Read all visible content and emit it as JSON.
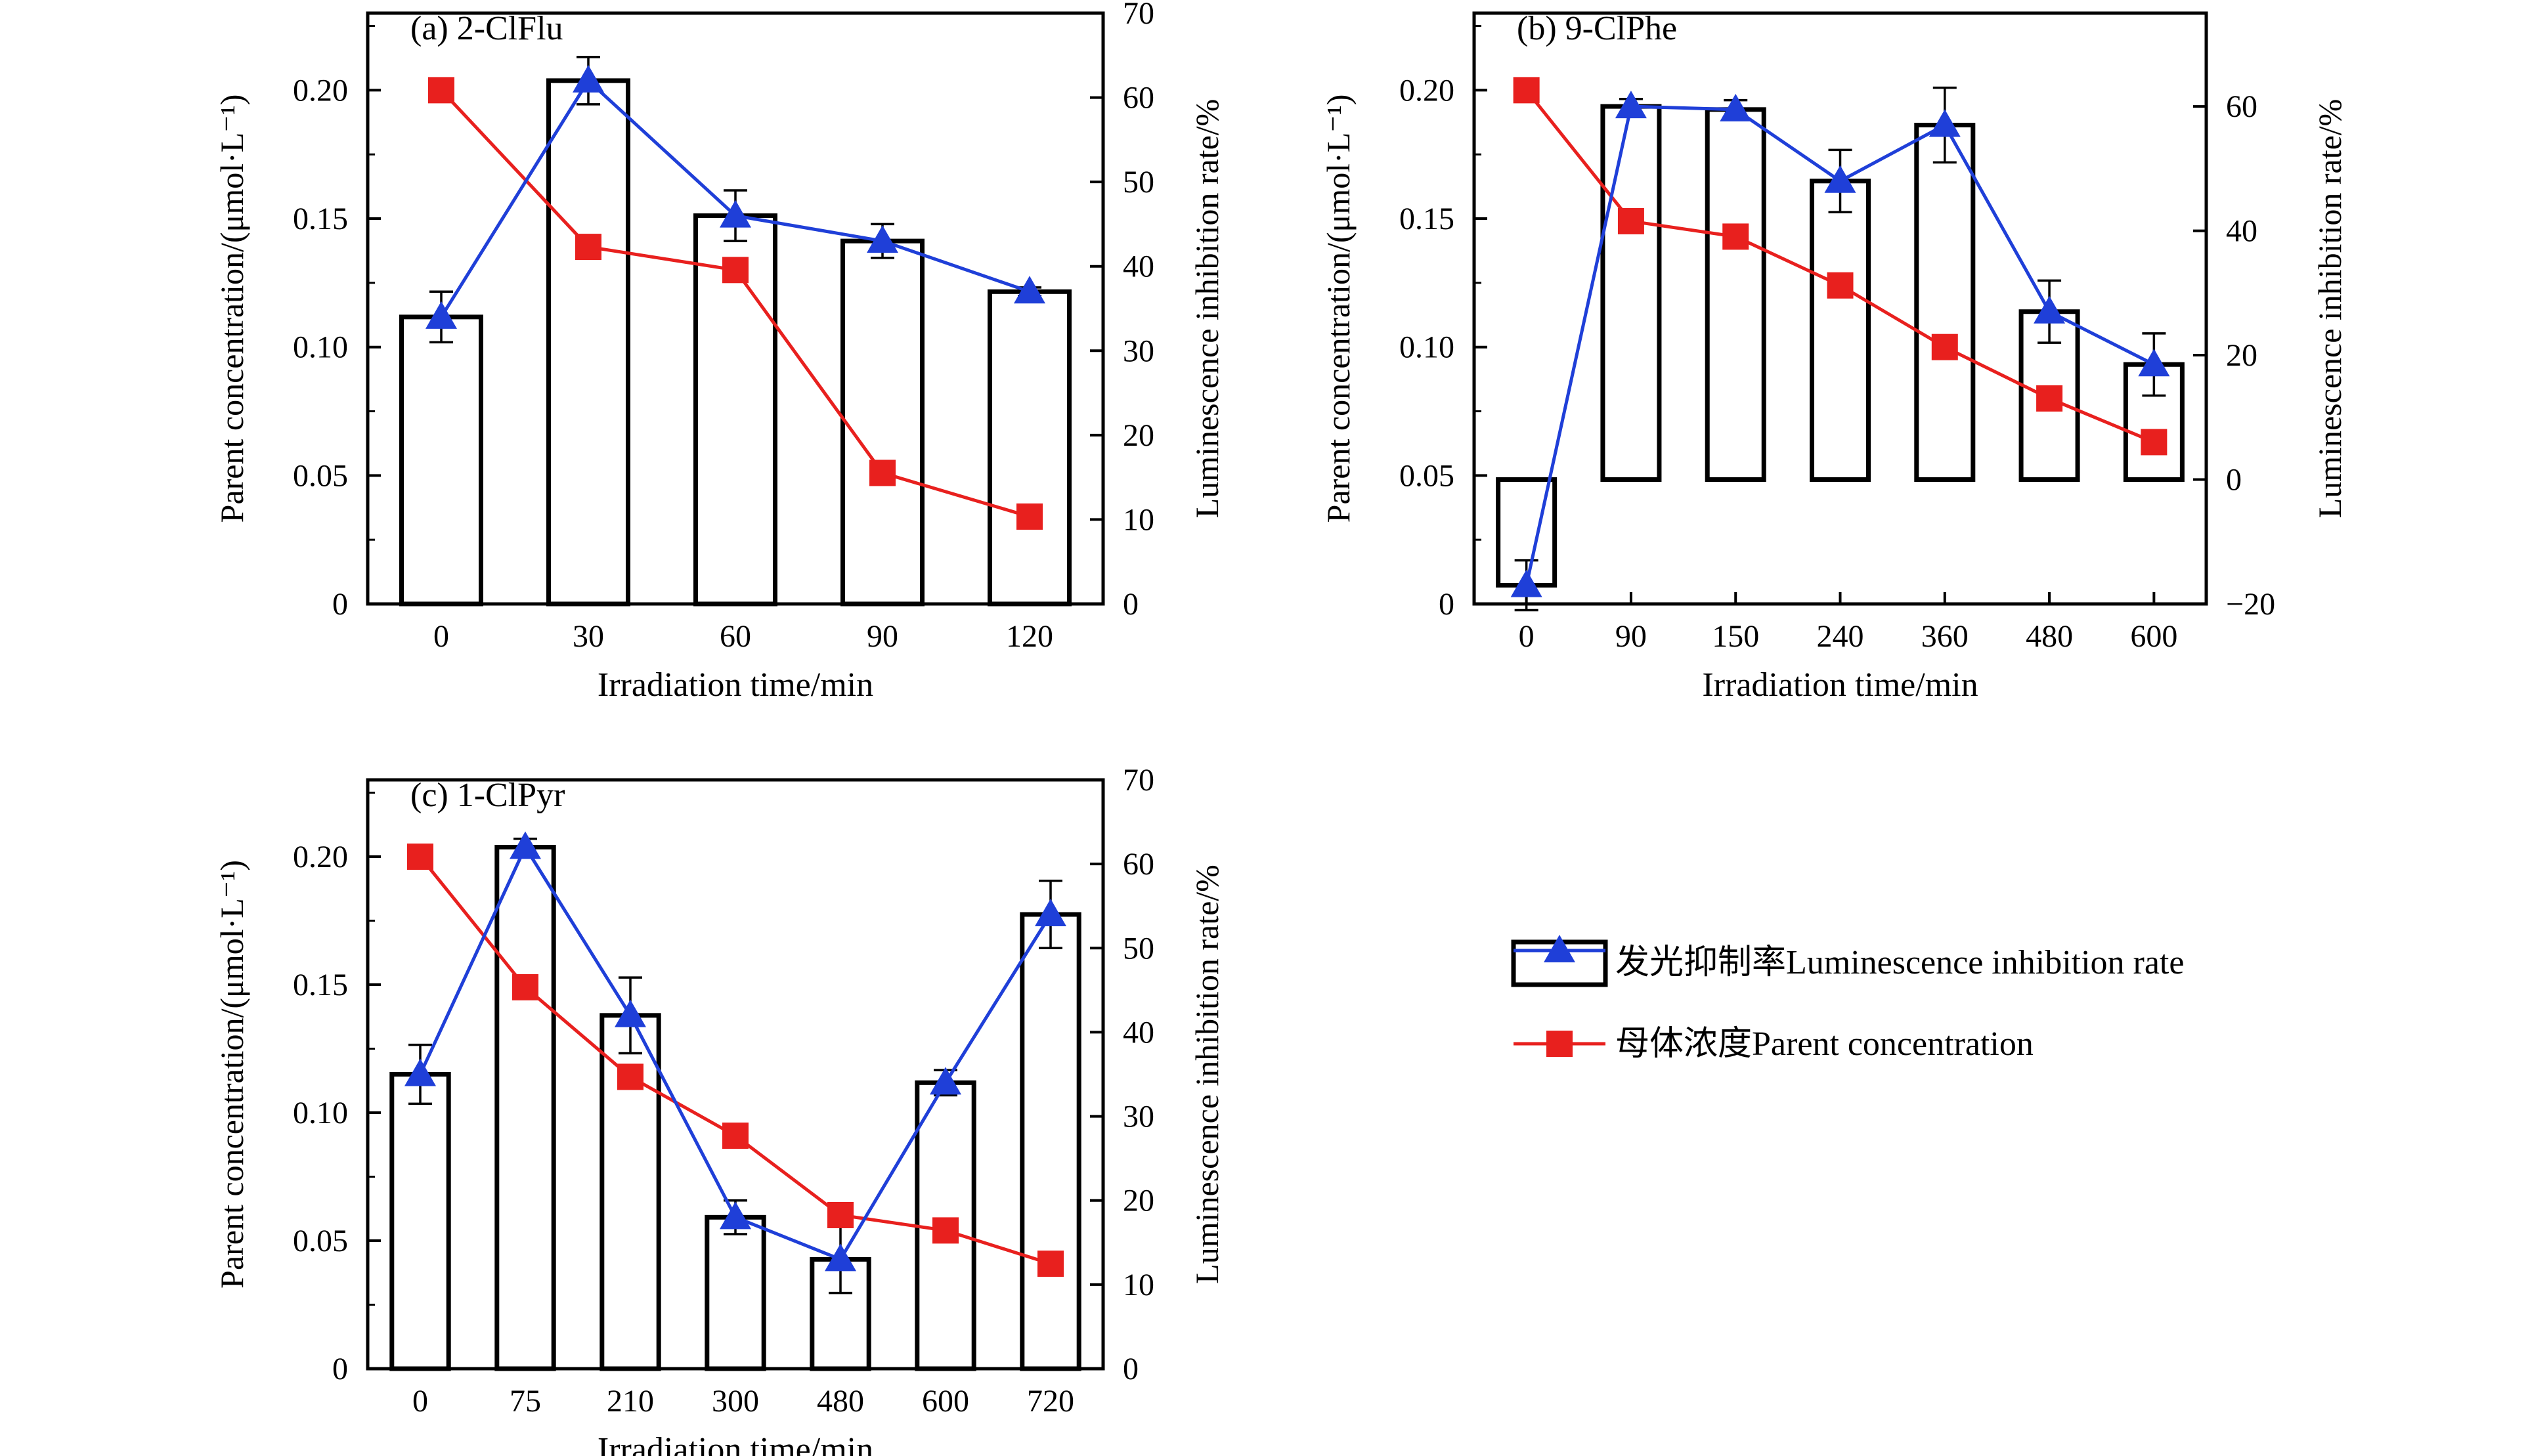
{
  "colors": {
    "bar_stroke": "#000000",
    "luminescence": "#1f3fd8",
    "parent": "#e8201e",
    "axis": "#000000"
  },
  "legend": {
    "luminescence_label": "发光抑制率Luminescence inhibition rate",
    "parent_label": "母体浓度Parent concentration"
  },
  "chart_data": [
    {
      "type": "bar",
      "title": "(a) 2-ClFlu",
      "xlabel": "Irradiation time/min",
      "ylabel": "Parent concentration/(μmol·L⁻¹)",
      "y2label": "Luminescence inhibition rate/%",
      "categories": [
        "0",
        "30",
        "60",
        "90",
        "120"
      ],
      "ylim": [
        0,
        0.23
      ],
      "y2lim": [
        0,
        70
      ],
      "yticks": [
        "0",
        "0.05",
        "0.10",
        "0.15",
        "0.20"
      ],
      "yticks_values": [
        0,
        0.05,
        0.1,
        0.15,
        0.2
      ],
      "y2ticks": [
        "0",
        "10",
        "20",
        "30",
        "40",
        "50",
        "60",
        "70"
      ],
      "y2ticks_values": [
        0,
        10,
        20,
        30,
        40,
        50,
        60,
        70
      ],
      "bar_axis": "y2",
      "series": [
        {
          "name": "发光抑制率Luminescence inhibition rate",
          "kind": "bar+line",
          "axis": "y2",
          "values": [
            34,
            62,
            46,
            43,
            37
          ],
          "errors": [
            3,
            2.8,
            3,
            2,
            0.5
          ]
        },
        {
          "name": "母体浓度Parent concentration",
          "kind": "line",
          "axis": "y",
          "values": [
            0.2,
            0.139,
            0.13,
            0.051,
            0.034
          ]
        }
      ]
    },
    {
      "type": "bar",
      "title": "(b) 9-ClPhe",
      "xlabel": "Irradiation time/min",
      "ylabel": "Parent concentration/(μmol·L⁻¹)",
      "y2label": "Luminescence inhibition rate/%",
      "categories": [
        "0",
        "90",
        "150",
        "240",
        "360",
        "480",
        "600"
      ],
      "ylim": [
        0,
        0.23
      ],
      "y2lim": [
        -20,
        75
      ],
      "yticks": [
        "0",
        "0.05",
        "0.10",
        "0.15",
        "0.20"
      ],
      "yticks_values": [
        0,
        0.05,
        0.1,
        0.15,
        0.2
      ],
      "y2ticks": [
        "−20",
        "0",
        "20",
        "40",
        "60"
      ],
      "y2ticks_values": [
        -20,
        0,
        20,
        40,
        60
      ],
      "bar_axis": "y2",
      "series": [
        {
          "name": "发光抑制率Luminescence inhibition rate",
          "kind": "bar+line",
          "axis": "y2",
          "values": [
            -17,
            60,
            59.5,
            48,
            57,
            27,
            18.5
          ],
          "errors": [
            4,
            1.2,
            1.5,
            5,
            6,
            5,
            5
          ]
        },
        {
          "name": "母体浓度Parent concentration",
          "kind": "line",
          "axis": "y",
          "values": [
            0.2,
            0.149,
            0.143,
            0.124,
            0.1,
            0.08,
            0.063
          ]
        }
      ]
    },
    {
      "type": "bar",
      "title": "(c) 1-ClPyr",
      "xlabel": "Irradiation time/min",
      "ylabel": "Parent concentration/(μmol·L⁻¹)",
      "y2label": "Luminescence inhibition rate/%",
      "categories": [
        "0",
        "75",
        "210",
        "300",
        "480",
        "600",
        "720"
      ],
      "ylim": [
        0,
        0.23
      ],
      "y2lim": [
        0,
        70
      ],
      "yticks": [
        "0",
        "0.05",
        "0.10",
        "0.15",
        "0.20"
      ],
      "yticks_values": [
        0,
        0.05,
        0.1,
        0.15,
        0.2
      ],
      "y2ticks": [
        "0",
        "10",
        "20",
        "30",
        "40",
        "50",
        "60",
        "70"
      ],
      "y2ticks_values": [
        0,
        10,
        20,
        30,
        40,
        50,
        60,
        70
      ],
      "bar_axis": "y2",
      "series": [
        {
          "name": "发光抑制率Luminescence inhibition rate",
          "kind": "bar+line",
          "axis": "y2",
          "values": [
            35,
            62,
            42,
            18,
            13,
            34,
            54
          ],
          "errors": [
            3.5,
            1,
            4.5,
            2,
            4,
            1.5,
            4
          ]
        },
        {
          "name": "母体浓度Parent concentration",
          "kind": "line",
          "axis": "y",
          "values": [
            0.2,
            0.149,
            0.114,
            0.091,
            0.06,
            0.054,
            0.041
          ]
        }
      ]
    }
  ]
}
